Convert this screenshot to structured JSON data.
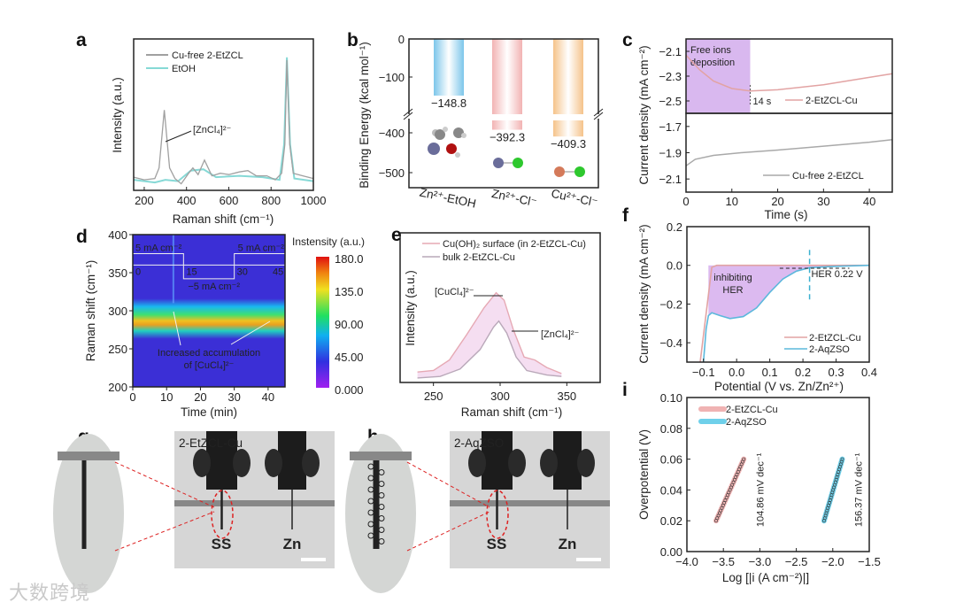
{
  "panel_labels": [
    "a",
    "b",
    "c",
    "d",
    "e",
    "f",
    "g",
    "h",
    "i"
  ],
  "watermark": "大数跨境",
  "chart_data": [
    {
      "id": "a",
      "type": "line",
      "xlabel": "Raman shift (cm⁻¹)",
      "ylabel": "Intensity (a.u.)",
      "xlim": [
        150,
        1000
      ],
      "ylim": [
        0,
        1
      ],
      "xticks": [
        200,
        400,
        600,
        800,
        1000
      ],
      "legend_position": "top-left",
      "annotation": "[ZnCl₄]²⁻",
      "series": [
        {
          "name": "Cu-free 2-EtZCL",
          "color": "#a0a0a0",
          "points": [
            [
              150,
              0.05
            ],
            [
              200,
              0.03
            ],
            [
              250,
              0.04
            ],
            [
              270,
              0.12
            ],
            [
              295,
              0.56
            ],
            [
              320,
              0.12
            ],
            [
              345,
              0.04
            ],
            [
              375,
              0.0
            ],
            [
              410,
              0.08
            ],
            [
              430,
              0.12
            ],
            [
              455,
              0.07
            ],
            [
              485,
              0.18
            ],
            [
              520,
              0.06
            ],
            [
              560,
              0.08
            ],
            [
              600,
              0.07
            ],
            [
              650,
              0.09
            ],
            [
              690,
              0.1
            ],
            [
              730,
              0.06
            ],
            [
              780,
              0.06
            ],
            [
              820,
              0.03
            ],
            [
              850,
              0.08
            ],
            [
              865,
              0.3
            ],
            [
              875,
              0.94
            ],
            [
              888,
              0.3
            ],
            [
              905,
              0.08
            ],
            [
              950,
              0.06
            ],
            [
              1000,
              0.04
            ]
          ]
        },
        {
          "name": "EtOH",
          "color": "#86d9d6",
          "points": [
            [
              150,
              0.03
            ],
            [
              250,
              0.01
            ],
            [
              300,
              0.03
            ],
            [
              360,
              0.02
            ],
            [
              420,
              0.1
            ],
            [
              480,
              0.11
            ],
            [
              540,
              0.05
            ],
            [
              650,
              0.06
            ],
            [
              760,
              0.05
            ],
            [
              840,
              0.03
            ],
            [
              862,
              0.3
            ],
            [
              875,
              0.96
            ],
            [
              890,
              0.3
            ],
            [
              910,
              0.04
            ],
            [
              1000,
              0.02
            ]
          ]
        }
      ]
    },
    {
      "id": "b",
      "type": "bar",
      "ylabel": "Binding Energy (kcal mol⁻¹)",
      "categories": [
        "Zn²⁺-EtOH",
        "Zn²⁺-Cl⁻",
        "Cu²⁺-Cl⁻"
      ],
      "values": [
        -148.8,
        -392.3,
        -409.3
      ],
      "value_labels": [
        "−148.8",
        "−392.3",
        "−409.3"
      ],
      "colors": [
        "#7cc6ea",
        "#f2b3b3",
        "#f5c38a"
      ],
      "yticks": [
        {
          "v": 0,
          "t": "0"
        },
        {
          "v": -100,
          "t": "−100"
        },
        {
          "v": -400,
          "t": "−400"
        },
        {
          "v": -500,
          "t": "−500"
        }
      ],
      "ylim": [
        -550,
        0
      ],
      "axis_break": [
        -200,
        -350
      ]
    },
    {
      "id": "c",
      "type": "line",
      "xlabel": "Time (s)",
      "ylabel": "Current density (mA cm⁻²)",
      "xlim": [
        0,
        45
      ],
      "xticks": [
        0,
        10,
        20,
        30,
        40
      ],
      "shaded_region": {
        "x": [
          0,
          14
        ],
        "label": [
          "Free ions",
          "deposition"
        ],
        "color": "#d9b8ef"
      },
      "marker_label": "14 s",
      "subplots": [
        {
          "name": "2-EtZCL-Cu",
          "color": "#e2a3a3",
          "ylim": [
            -2.6,
            -2.0
          ],
          "yticks": [
            {
              "v": -2.1,
              "t": "−2.1"
            },
            {
              "v": -2.3,
              "t": "−2.3"
            },
            {
              "v": -2.5,
              "t": "−2.5"
            }
          ],
          "points": [
            [
              0,
              -2.13
            ],
            [
              3,
              -2.25
            ],
            [
              6,
              -2.34
            ],
            [
              10,
              -2.4
            ],
            [
              14,
              -2.42
            ],
            [
              20,
              -2.41
            ],
            [
              30,
              -2.37
            ],
            [
              40,
              -2.31
            ],
            [
              45,
              -2.28
            ]
          ]
        },
        {
          "name": "Cu-free 2-EtZCL",
          "color": "#a9a9a9",
          "ylim": [
            -2.2,
            -1.6
          ],
          "yticks": [
            {
              "v": -1.7,
              "t": "−1.7"
            },
            {
              "v": -1.9,
              "t": "−1.9"
            },
            {
              "v": -2.1,
              "t": "−2.1"
            }
          ],
          "points": [
            [
              0,
              -2.0
            ],
            [
              2,
              -1.95
            ],
            [
              6,
              -1.92
            ],
            [
              12,
              -1.9
            ],
            [
              20,
              -1.88
            ],
            [
              30,
              -1.85
            ],
            [
              40,
              -1.82
            ],
            [
              45,
              -1.8
            ]
          ]
        }
      ]
    },
    {
      "id": "d",
      "type": "heatmap",
      "xlabel": "Time (min)",
      "ylabel": "Raman shift (cm⁻¹)",
      "xlim": [
        0,
        45
      ],
      "ylim": [
        200,
        400
      ],
      "xticks": [
        0,
        10,
        20,
        30,
        40
      ],
      "yticks": [
        200,
        250,
        300,
        350,
        400
      ],
      "band_center": 298,
      "colorbar": {
        "title": "Instensity (a.u.)",
        "ticks": [
          "180.0",
          "135.0",
          "90.00",
          "45.00",
          "0.000"
        ],
        "range": [
          0,
          180
        ]
      },
      "current_protocol": {
        "labels": [
          "5 mA cm⁻²",
          "−5 mA cm⁻²",
          "5 mA cm⁻²"
        ],
        "times": [
          "0",
          "15",
          "30",
          "45"
        ]
      },
      "annotation": [
        "Increased accumulation",
        "of [CuCl₄]²⁻"
      ]
    },
    {
      "id": "e",
      "type": "line",
      "xlabel": "Raman shift (cm⁻¹)",
      "ylabel": "Intensity (a.u.)",
      "xlim": [
        225,
        375
      ],
      "ylim": [
        0,
        1
      ],
      "xticks": [
        250,
        300,
        350
      ],
      "annotations": [
        "[CuCl₄]²⁻",
        "[ZnCl₄]²⁻"
      ],
      "series": [
        {
          "name": "Cu(OH)₂ surface (in 2-EtZCL-Cu)",
          "color": "#e6a9b4",
          "points": [
            [
              238,
              0.07
            ],
            [
              250,
              0.08
            ],
            [
              262,
              0.15
            ],
            [
              275,
              0.32
            ],
            [
              288,
              0.5
            ],
            [
              297,
              0.6
            ],
            [
              303,
              0.55
            ],
            [
              310,
              0.35
            ],
            [
              318,
              0.17
            ],
            [
              326,
              0.15
            ],
            [
              335,
              0.1
            ],
            [
              346,
              0.06
            ]
          ]
        },
        {
          "name": "bulk 2-EtZCL-Cu",
          "color": "#b9a8b9",
          "points": [
            [
              238,
              0.03
            ],
            [
              255,
              0.04
            ],
            [
              270,
              0.09
            ],
            [
              285,
              0.22
            ],
            [
              295,
              0.37
            ],
            [
              299,
              0.41
            ],
            [
              305,
              0.33
            ],
            [
              312,
              0.17
            ],
            [
              320,
              0.08
            ],
            [
              335,
              0.05
            ],
            [
              346,
              0.04
            ]
          ]
        }
      ]
    },
    {
      "id": "f",
      "type": "line",
      "xlabel": "Potential (V vs. Zn/Zn²⁺)",
      "ylabel": "Current density (mA cm⁻²)",
      "xlim": [
        -0.15,
        0.4
      ],
      "ylim": [
        -0.5,
        0.2
      ],
      "xticks": [
        {
          "v": -0.1,
          "t": "−0.1"
        },
        {
          "v": 0,
          "t": "0.0"
        },
        {
          "v": 0.1,
          "t": "0.1"
        },
        {
          "v": 0.2,
          "t": "0.2"
        },
        {
          "v": 0.3,
          "t": "0.3"
        },
        {
          "v": 0.4,
          "t": "0.4"
        }
      ],
      "yticks": [
        {
          "v": 0.2,
          "t": "0.2"
        },
        {
          "v": 0,
          "t": "0.0"
        },
        {
          "v": -0.2,
          "t": "−0.2"
        },
        {
          "v": -0.4,
          "t": "−0.4"
        }
      ],
      "shaded_label": [
        "inhibiting",
        "HER"
      ],
      "her_marker": {
        "x": 0.22,
        "label": "HER 0.22 V"
      },
      "series": [
        {
          "name": "2-EtZCL-Cu",
          "color": "#e2a3a3",
          "points": [
            [
              -0.11,
              -0.5
            ],
            [
              -0.09,
              -0.22
            ],
            [
              -0.075,
              -0.01
            ],
            [
              -0.06,
              0
            ],
            [
              0.4,
              0
            ]
          ]
        },
        {
          "name": "2-AqZSO",
          "color": "#5cb8dc",
          "points": [
            [
              -0.1,
              -0.5
            ],
            [
              -0.092,
              -0.33
            ],
            [
              -0.085,
              -0.26
            ],
            [
              -0.075,
              -0.245
            ],
            [
              -0.05,
              -0.26
            ],
            [
              -0.02,
              -0.275
            ],
            [
              0.02,
              -0.265
            ],
            [
              0.06,
              -0.22
            ],
            [
              0.1,
              -0.14
            ],
            [
              0.14,
              -0.07
            ],
            [
              0.18,
              -0.03
            ],
            [
              0.22,
              -0.012
            ],
            [
              0.3,
              -0.005
            ],
            [
              0.4,
              0
            ]
          ]
        }
      ]
    },
    {
      "id": "i",
      "type": "scatter",
      "xlabel": "Log [|i (A cm⁻²)|]",
      "ylabel": "Overpotential (V)",
      "xlim": [
        -4.0,
        -1.5
      ],
      "ylim": [
        0,
        0.1
      ],
      "xticks": [
        {
          "v": -4,
          "t": "−4.0"
        },
        {
          "v": -3.5,
          "t": "−3.5"
        },
        {
          "v": -3,
          "t": "−3.0"
        },
        {
          "v": -2.5,
          "t": "−2.5"
        },
        {
          "v": -2,
          "t": "−2.0"
        },
        {
          "v": -1.5,
          "t": "−1.5"
        }
      ],
      "yticks": [
        {
          "v": 0,
          "t": "0.00"
        },
        {
          "v": 0.02,
          "t": "0.02"
        },
        {
          "v": 0.04,
          "t": "0.04"
        },
        {
          "v": 0.06,
          "t": "0.06"
        },
        {
          "v": 0.08,
          "t": "0.08"
        },
        {
          "v": 0.1,
          "t": "0.10"
        }
      ],
      "series": [
        {
          "name": "2-EtZCL-Cu",
          "color": "#f0b3b3",
          "slope_label": "104.86 mV dec⁻¹",
          "x": [
            -3.6,
            -3.22
          ],
          "y": [
            0.02,
            0.06
          ]
        },
        {
          "name": "2-AqZSO",
          "color": "#6fd0ea",
          "slope_label": "156.37 mV dec⁻¹",
          "x": [
            -2.12,
            -1.87
          ],
          "y": [
            0.02,
            0.06
          ]
        }
      ]
    }
  ],
  "photos": [
    {
      "id": "g",
      "electrolyte": "2-EtZCL-Cu",
      "electrodes": [
        "SS",
        "Zn"
      ]
    },
    {
      "id": "h",
      "electrolyte": "2-AqZSO",
      "electrodes": [
        "SS",
        "Zn"
      ]
    }
  ]
}
